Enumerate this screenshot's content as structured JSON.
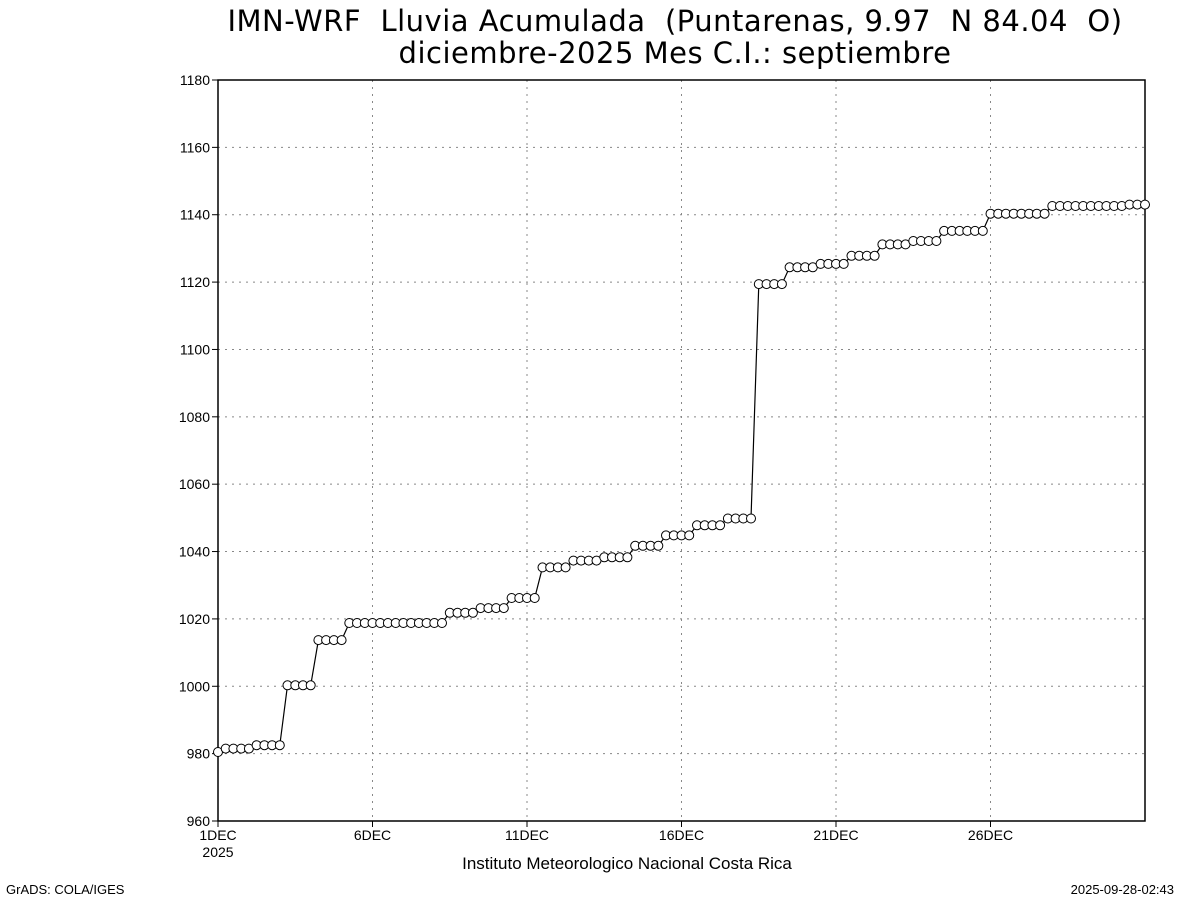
{
  "chart_data": {
    "type": "line",
    "title": "IMN-WRF  Lluvia Acumulada  (Puntarenas, 9.97  N 84.04  O)",
    "subtitle": "diciembre-2025 Mes C.I.: septiembre",
    "xlabel": "Instituto Meteorologico Nacional Costa Rica",
    "ylabel": "",
    "ylim": [
      960,
      1180
    ],
    "yticks": [
      960,
      980,
      1000,
      1020,
      1040,
      1060,
      1080,
      1100,
      1120,
      1140,
      1160,
      1180
    ],
    "xlim": [
      1,
      31
    ],
    "xticks": [
      {
        "day": 1,
        "label": "1DEC",
        "sublabel": "2025"
      },
      {
        "day": 6,
        "label": "6DEC"
      },
      {
        "day": 11,
        "label": "11DEC"
      },
      {
        "day": 16,
        "label": "16DEC"
      },
      {
        "day": 21,
        "label": "21DEC"
      },
      {
        "day": 26,
        "label": "26DEC"
      }
    ],
    "grid": true,
    "marker": "open-circle",
    "step_days": 0.25,
    "series": [
      {
        "start_day": 1,
        "values": [
          980.5,
          981.5,
          981.5,
          981.5,
          981.5,
          982.5,
          982.5,
          982.5,
          982.5,
          1000.3,
          1000.3,
          1000.3,
          1000.3,
          1013.7,
          1013.7,
          1013.7,
          1013.7,
          1018.8,
          1018.8,
          1018.8,
          1018.8,
          1018.8,
          1018.8,
          1018.8,
          1018.8,
          1018.8,
          1018.8,
          1018.8,
          1018.8,
          1018.8,
          1021.8,
          1021.8,
          1021.8,
          1021.8,
          1023.2,
          1023.2,
          1023.2,
          1023.2,
          1026.2,
          1026.2,
          1026.2,
          1026.2,
          1035.3,
          1035.3,
          1035.3,
          1035.3,
          1037.3,
          1037.3,
          1037.3,
          1037.3,
          1038.3,
          1038.3,
          1038.3,
          1038.3,
          1041.7,
          1041.7,
          1041.7,
          1041.7,
          1044.8,
          1044.8,
          1044.8,
          1044.8,
          1047.8,
          1047.8,
          1047.8,
          1047.8,
          1049.8,
          1049.8,
          1049.8,
          1049.8,
          1119.4,
          1119.4,
          1119.4,
          1119.4,
          1124.4,
          1124.4,
          1124.4,
          1124.4,
          1125.4,
          1125.4,
          1125.4,
          1125.4,
          1127.8,
          1127.8,
          1127.8,
          1127.8,
          1131.2,
          1131.2,
          1131.2,
          1131.2,
          1132.2,
          1132.2,
          1132.2,
          1132.2,
          1135.2,
          1135.2,
          1135.2,
          1135.2,
          1135.2,
          1135.2,
          1140.3,
          1140.3,
          1140.3,
          1140.3,
          1140.3,
          1140.3,
          1140.3,
          1140.3,
          1142.6,
          1142.6,
          1142.6,
          1142.6,
          1142.6,
          1142.6,
          1142.6,
          1142.6,
          1142.6,
          1142.6,
          1143.0,
          1143.0,
          1143.0
        ]
      }
    ]
  },
  "footer": {
    "left": "GrADS: COLA/IGES",
    "right": "2025-09-28-02:43"
  }
}
